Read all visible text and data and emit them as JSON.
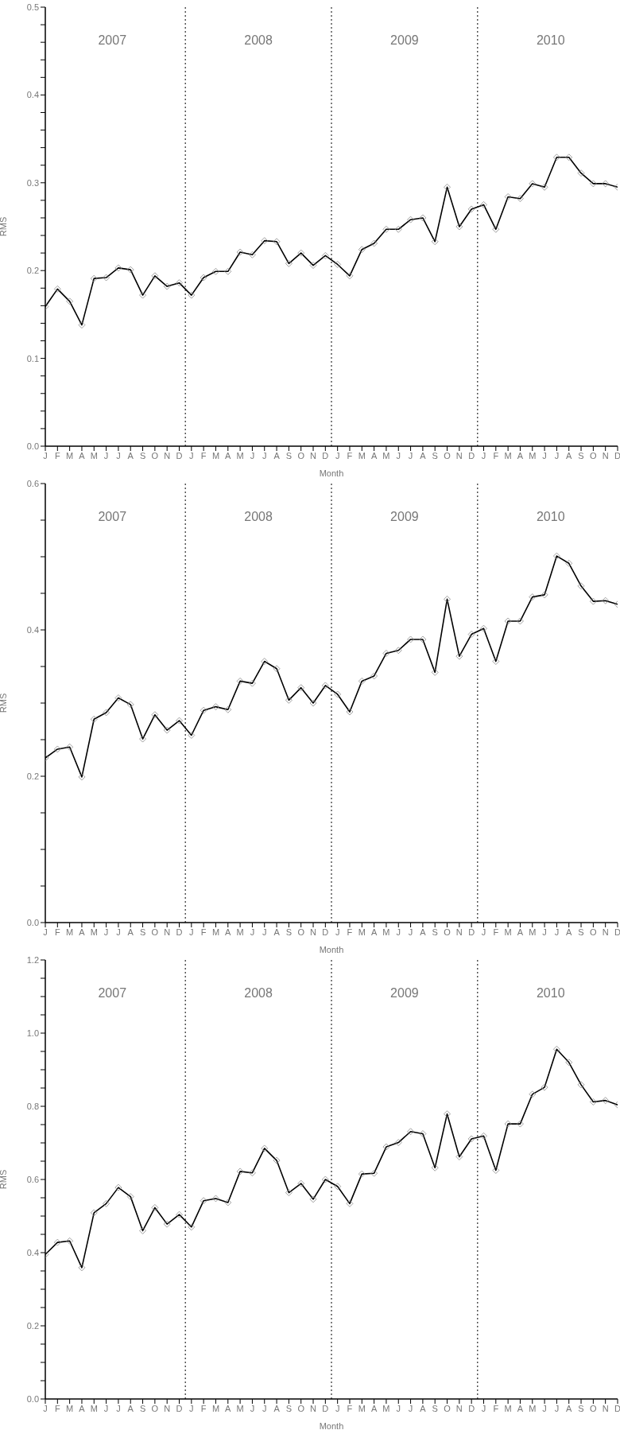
{
  "chart_data": [
    {
      "type": "line",
      "xlabel": "Month",
      "ylabel": "RMS",
      "categories": [
        "J",
        "F",
        "M",
        "A",
        "M",
        "J",
        "J",
        "A",
        "S",
        "O",
        "N",
        "D",
        "J",
        "F",
        "M",
        "A",
        "M",
        "J",
        "J",
        "A",
        "S",
        "O",
        "N",
        "D",
        "J",
        "F",
        "M",
        "A",
        "M",
        "J",
        "J",
        "A",
        "S",
        "O",
        "N",
        "D",
        "J",
        "F",
        "M",
        "A",
        "M",
        "J",
        "J",
        "A",
        "S",
        "O",
        "N",
        "D"
      ],
      "ylim": [
        0,
        0.5
      ],
      "yticks": [
        {
          "value": 0,
          "label": "0.0"
        },
        {
          "value": 0.02,
          "label": null
        },
        {
          "value": 0.04,
          "label": null
        },
        {
          "value": 0.06,
          "label": null
        },
        {
          "value": 0.08,
          "label": null
        },
        0.1,
        {
          "value": 0.12,
          "label": null
        },
        {
          "value": 0.14,
          "label": null
        },
        {
          "value": 0.16,
          "label": null
        },
        {
          "value": 0.18,
          "label": null
        },
        0.2,
        {
          "value": 0.22,
          "label": null
        },
        {
          "value": 0.24,
          "label": null
        },
        {
          "value": 0.26,
          "label": null
        },
        {
          "value": 0.28,
          "label": null
        },
        0.3,
        {
          "value": 0.32,
          "label": null
        },
        {
          "value": 0.34,
          "label": null
        },
        {
          "value": 0.36,
          "label": null
        },
        {
          "value": 0.38,
          "label": null
        },
        0.4,
        {
          "value": 0.42,
          "label": null
        },
        {
          "value": 0.44,
          "label": null
        },
        {
          "value": 0.46,
          "label": null
        },
        {
          "value": 0.48,
          "label": null
        },
        0.5
      ],
      "series": [
        {
          "color": "#000000",
          "values": [
            0.159,
            0.179,
            0.165,
            0.138,
            0.191,
            0.192,
            0.203,
            0.201,
            0.172,
            0.194,
            0.182,
            0.186,
            0.172,
            0.192,
            0.199,
            0.199,
            0.221,
            0.218,
            0.234,
            0.233,
            0.208,
            0.22,
            0.206,
            0.217,
            0.207,
            0.194,
            0.224,
            0.231,
            0.247,
            0.247,
            0.258,
            0.26,
            0.233,
            0.295,
            0.25,
            0.27,
            0.275,
            0.247,
            0.284,
            0.282,
            0.299,
            0.295,
            0.329,
            0.329,
            0.311,
            0.299,
            0.299,
            0.295
          ]
        }
      ],
      "marker": "diamond",
      "line_style": "solid",
      "grid": false,
      "legend": false,
      "annotations": [
        "2007",
        "2008",
        "2009",
        "2010"
      ]
    },
    {
      "type": "line",
      "xlabel": "Month",
      "ylabel": "RMS",
      "categories": [
        "J",
        "F",
        "M",
        "A",
        "M",
        "J",
        "J",
        "A",
        "S",
        "O",
        "N",
        "D",
        "J",
        "F",
        "M",
        "A",
        "M",
        "J",
        "J",
        "A",
        "S",
        "O",
        "N",
        "D",
        "J",
        "F",
        "M",
        "A",
        "M",
        "J",
        "J",
        "A",
        "S",
        "O",
        "N",
        "D",
        "J",
        "F",
        "M",
        "A",
        "M",
        "J",
        "J",
        "A",
        "S",
        "O",
        "N",
        "D"
      ],
      "ylim": [
        0,
        0.6
      ],
      "yticks": [
        {
          "value": 0,
          "label": "0.0"
        },
        {
          "value": 0.05,
          "label": null
        },
        {
          "value": 0.1,
          "label": null
        },
        {
          "value": 0.15,
          "label": null
        },
        0.2,
        {
          "value": 0.25,
          "label": null
        },
        {
          "value": 0.3,
          "label": null
        },
        {
          "value": 0.35,
          "label": null
        },
        0.4,
        {
          "value": 0.45,
          "label": null
        },
        {
          "value": 0.5,
          "label": null
        },
        {
          "value": 0.55,
          "label": null
        },
        0.6
      ],
      "series": [
        {
          "color": "#000000",
          "values": [
            0.225,
            0.237,
            0.24,
            0.199,
            0.278,
            0.287,
            0.307,
            0.298,
            0.251,
            0.284,
            0.263,
            0.276,
            0.256,
            0.29,
            0.295,
            0.291,
            0.33,
            0.327,
            0.357,
            0.347,
            0.304,
            0.321,
            0.3,
            0.324,
            0.312,
            0.288,
            0.33,
            0.337,
            0.368,
            0.372,
            0.387,
            0.387,
            0.342,
            0.442,
            0.364,
            0.394,
            0.402,
            0.357,
            0.412,
            0.412,
            0.445,
            0.448,
            0.501,
            0.491,
            0.46,
            0.439,
            0.44,
            0.435
          ]
        }
      ],
      "marker": "diamond",
      "line_style": "solid",
      "grid": false,
      "legend": false,
      "annotations": [
        "2007",
        "2008",
        "2009",
        "2010"
      ]
    },
    {
      "type": "line",
      "xlabel": "Month",
      "ylabel": "RMS",
      "categories": [
        "J",
        "F",
        "M",
        "A",
        "M",
        "J",
        "J",
        "A",
        "S",
        "O",
        "N",
        "D",
        "J",
        "F",
        "M",
        "A",
        "M",
        "J",
        "J",
        "A",
        "S",
        "O",
        "N",
        "D",
        "J",
        "F",
        "M",
        "A",
        "M",
        "J",
        "J",
        "A",
        "S",
        "O",
        "N",
        "D",
        "J",
        "F",
        "M",
        "A",
        "M",
        "J",
        "J",
        "A",
        "S",
        "O",
        "N",
        "D"
      ],
      "ylim": [
        0,
        1.2
      ],
      "yticks": [
        {
          "value": 0,
          "label": "0.0"
        },
        {
          "value": 0.05,
          "label": null
        },
        {
          "value": 0.1,
          "label": null
        },
        {
          "value": 0.15,
          "label": null
        },
        0.2,
        {
          "value": 0.25,
          "label": null
        },
        {
          "value": 0.3,
          "label": null
        },
        {
          "value": 0.35,
          "label": null
        },
        0.4,
        {
          "value": 0.45,
          "label": null
        },
        {
          "value": 0.5,
          "label": null
        },
        {
          "value": 0.55,
          "label": null
        },
        0.6,
        {
          "value": 0.65,
          "label": null
        },
        {
          "value": 0.7,
          "label": null
        },
        {
          "value": 0.75,
          "label": null
        },
        0.8,
        {
          "value": 0.85,
          "label": null
        },
        {
          "value": 0.9,
          "label": null
        },
        {
          "value": 0.95,
          "label": null
        },
        {
          "value": 1,
          "label": "1.0"
        },
        {
          "value": 1.05,
          "label": null
        },
        {
          "value": 1.1,
          "label": null
        },
        {
          "value": 1.15,
          "label": null
        },
        1.2
      ],
      "series": [
        {
          "color": "#000000",
          "values": [
            0.395,
            0.428,
            0.432,
            0.359,
            0.509,
            0.534,
            0.578,
            0.553,
            0.46,
            0.523,
            0.478,
            0.504,
            0.47,
            0.542,
            0.548,
            0.537,
            0.622,
            0.618,
            0.685,
            0.652,
            0.564,
            0.589,
            0.546,
            0.6,
            0.581,
            0.534,
            0.615,
            0.617,
            0.689,
            0.701,
            0.731,
            0.725,
            0.632,
            0.779,
            0.662,
            0.711,
            0.719,
            0.625,
            0.752,
            0.752,
            0.833,
            0.852,
            0.956,
            0.92,
            0.859,
            0.812,
            0.816,
            0.804
          ]
        }
      ],
      "marker": "diamond",
      "line_style": "solid",
      "grid": false,
      "legend": false,
      "annotations": [
        "2007",
        "2008",
        "2009",
        "2010"
      ]
    }
  ]
}
